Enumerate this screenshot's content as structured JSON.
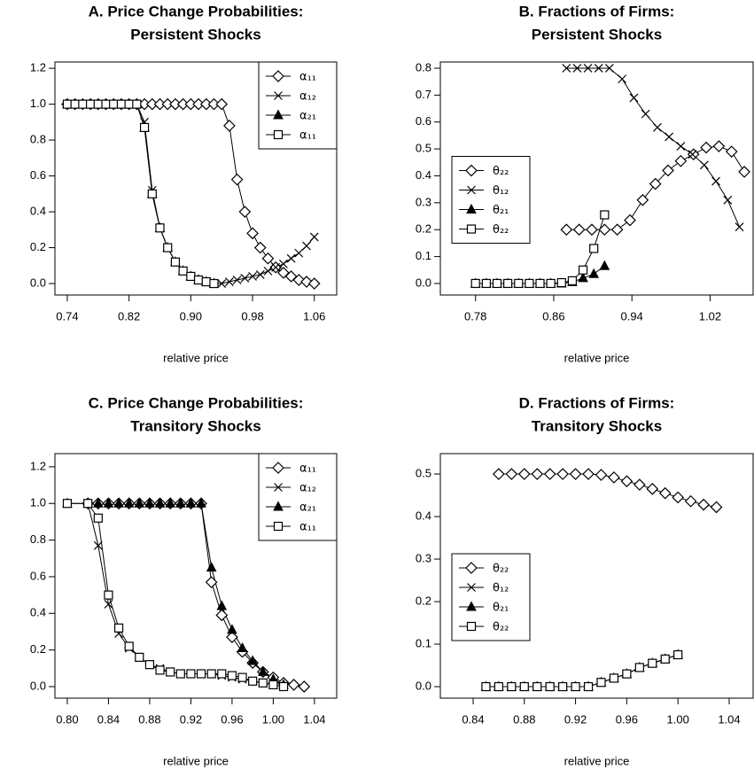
{
  "chart_data": [
    {
      "type": "line",
      "title": [
        "A. Price Change Probabilities:",
        "Persistent Shocks"
      ],
      "xlabel": "relative price",
      "xlim": [
        0.724,
        1.089
      ],
      "ylim": [
        -0.064,
        1.235
      ],
      "xticks": [
        0.74,
        0.82,
        {
          "value": 0.9,
          "label": "0.90"
        },
        0.98,
        1.06
      ],
      "yticks": [
        {
          "value": 0,
          "label": "0.0"
        },
        0.2,
        0.4,
        0.6,
        0.8,
        {
          "value": 1,
          "label": "1.0"
        },
        1.2
      ],
      "legend": "topright",
      "series": [
        {
          "name": "α₁₁",
          "marker": "diamond",
          "color": "#000000",
          "x": [
            0.74,
            0.75,
            0.76,
            0.77,
            0.78,
            0.79,
            0.8,
            0.81,
            0.82,
            0.83,
            0.84,
            0.85,
            0.86,
            0.87,
            0.88,
            0.89,
            0.9,
            0.91,
            0.92,
            0.93,
            0.94,
            0.95,
            0.96,
            0.97,
            0.98,
            0.99,
            1.0,
            1.01,
            1.02,
            1.03,
            1.04,
            1.05,
            1.06
          ],
          "values": [
            1,
            1,
            1,
            1,
            1,
            1,
            1,
            1,
            1,
            1,
            1,
            1,
            1,
            1,
            1,
            1,
            1,
            1,
            1,
            1,
            1,
            0.88,
            0.58,
            0.4,
            0.28,
            0.2,
            0.14,
            0.09,
            0.06,
            0.04,
            0.02,
            0.01,
            0
          ]
        },
        {
          "name": "α₁₂",
          "marker": "cross",
          "color": "#000000",
          "x": [
            0.74,
            0.75,
            0.76,
            0.77,
            0.78,
            0.79,
            0.8,
            0.81,
            0.82,
            0.83,
            0.84,
            0.85,
            0.86,
            0.87,
            0.88,
            0.89,
            0.9,
            0.91,
            0.92,
            0.93,
            0.94,
            0.95,
            0.96,
            0.97,
            0.98,
            0.99,
            1.0,
            1.01,
            1.02,
            1.03,
            1.04,
            1.05,
            1.06
          ],
          "values": [
            1,
            1,
            1,
            1,
            1,
            1,
            1,
            1,
            1,
            1,
            0.9,
            0.52,
            0.31,
            0.2,
            0.12,
            0.07,
            0.04,
            0.02,
            0.01,
            0,
            0,
            0.01,
            0.02,
            0.03,
            0.04,
            0.05,
            0.07,
            0.09,
            0.11,
            0.14,
            0.17,
            0.21,
            0.26
          ]
        },
        {
          "name": "α₂₁",
          "marker": "triangle",
          "color": "#000000",
          "x": [
            0.74,
            0.75,
            0.76,
            0.77,
            0.78,
            0.79,
            0.8,
            0.81,
            0.82,
            0.83,
            0.84,
            0.85,
            0.86,
            0.87,
            0.88,
            0.89,
            0.9,
            0.91,
            0.92,
            0.93
          ],
          "values": [
            1,
            1,
            1,
            1,
            1,
            1,
            1,
            1,
            1,
            1,
            0.87,
            0.5,
            0.31,
            0.2,
            0.12,
            0.07,
            0.04,
            0.02,
            0.01,
            0
          ]
        },
        {
          "name": "α₁₁",
          "marker": "square",
          "color": "#000000",
          "x": [
            0.74,
            0.75,
            0.76,
            0.77,
            0.78,
            0.79,
            0.8,
            0.81,
            0.82,
            0.83,
            0.84,
            0.85,
            0.86,
            0.87,
            0.88,
            0.89,
            0.9,
            0.91,
            0.92,
            0.93
          ],
          "values": [
            1,
            1,
            1,
            1,
            1,
            1,
            1,
            1,
            1,
            1,
            0.87,
            0.5,
            0.31,
            0.2,
            0.12,
            0.07,
            0.04,
            0.02,
            0.01,
            0
          ]
        }
      ]
    },
    {
      "type": "line",
      "title": [
        "B. Fractions of Firms:",
        "Persistent Shocks"
      ],
      "xlabel": "relative price",
      "xlim": [
        0.744,
        1.064
      ],
      "ylim": [
        -0.043,
        0.823
      ],
      "xticks": [
        0.78,
        0.86,
        0.94,
        1.02
      ],
      "yticks": [
        {
          "value": 0,
          "label": "0.0"
        },
        0.1,
        0.2,
        0.3,
        0.4,
        0.5,
        0.6,
        0.7,
        0.8
      ],
      "legend": "left",
      "series": [
        {
          "name": "θ₂₂",
          "marker": "diamond",
          "color": "#000000",
          "x": [
            0.873,
            0.886,
            0.899,
            0.912,
            0.925,
            0.938,
            0.951,
            0.964,
            0.977,
            0.99,
            1.003,
            1.016,
            1.029,
            1.042,
            1.055
          ],
          "values": [
            0.2,
            0.2,
            0.2,
            0.2,
            0.2,
            0.235,
            0.31,
            0.37,
            0.42,
            0.455,
            0.48,
            0.505,
            0.51,
            0.49,
            0.415
          ]
        },
        {
          "name": "θ₁₂",
          "marker": "cross",
          "color": "#000000",
          "x": [
            0.873,
            0.884,
            0.895,
            0.906,
            0.917,
            0.93,
            0.942,
            0.954,
            0.966,
            0.978,
            0.99,
            1.002,
            1.014,
            1.026,
            1.038,
            1.05
          ],
          "values": [
            0.8,
            0.8,
            0.8,
            0.8,
            0.8,
            0.76,
            0.69,
            0.63,
            0.58,
            0.545,
            0.51,
            0.48,
            0.44,
            0.38,
            0.31,
            0.21
          ]
        },
        {
          "name": "θ₂₁",
          "marker": "triangle",
          "color": "#000000",
          "x": [
            0.78,
            0.791,
            0.802,
            0.813,
            0.824,
            0.835,
            0.846,
            0.857,
            0.868,
            0.879,
            0.89,
            0.901,
            0.912
          ],
          "values": [
            0,
            0,
            0,
            0,
            0,
            0,
            0,
            0,
            0,
            0.005,
            0.02,
            0.035,
            0.065
          ]
        },
        {
          "name": "θ₂₂",
          "marker": "square",
          "color": "#000000",
          "x": [
            0.78,
            0.791,
            0.802,
            0.813,
            0.824,
            0.835,
            0.846,
            0.857,
            0.868,
            0.879,
            0.89,
            0.901,
            0.912
          ],
          "values": [
            0,
            0,
            0,
            0,
            0,
            0,
            0,
            0,
            0.003,
            0.01,
            0.05,
            0.13,
            0.255
          ]
        }
      ]
    },
    {
      "type": "line",
      "title": [
        "C. Price Change Probabilities:",
        "Transitory Shocks"
      ],
      "xlabel": "relative price",
      "xlim": [
        0.788,
        1.0616
      ],
      "ylim": [
        -0.063,
        1.272
      ],
      "xticks": [
        {
          "value": 0.8,
          "label": "0.80"
        },
        0.84,
        0.88,
        0.92,
        0.96,
        {
          "value": 1,
          "label": "1.00"
        },
        1.04
      ],
      "yticks": [
        {
          "value": 0,
          "label": "0.0"
        },
        0.2,
        0.4,
        0.6,
        0.8,
        {
          "value": 1,
          "label": "1.0"
        },
        1.2
      ],
      "legend": "topright",
      "series": [
        {
          "name": "α₁₁",
          "marker": "diamond",
          "color": "#000000",
          "x": [
            0.82,
            0.83,
            0.84,
            0.85,
            0.86,
            0.87,
            0.88,
            0.89,
            0.9,
            0.91,
            0.92,
            0.93,
            0.94,
            0.95,
            0.96,
            0.97,
            0.98,
            0.99,
            1.0,
            1.01,
            1.02,
            1.03
          ],
          "values": [
            1,
            1,
            1,
            1,
            1,
            1,
            1,
            1,
            1,
            1,
            1,
            1,
            0.57,
            0.39,
            0.27,
            0.19,
            0.13,
            0.08,
            0.05,
            0.02,
            0.01,
            0
          ]
        },
        {
          "name": "α₁₂",
          "marker": "cross",
          "color": "#000000",
          "x": [
            0.82,
            0.83,
            0.84,
            0.85,
            0.86,
            0.87,
            0.88,
            0.89,
            0.9,
            0.91,
            0.92,
            0.93,
            0.94,
            0.95,
            0.96,
            0.97,
            0.98,
            0.99,
            1.0,
            1.01
          ],
          "values": [
            1,
            0.77,
            0.45,
            0.29,
            0.21,
            0.16,
            0.12,
            0.1,
            0.08,
            0.07,
            0.07,
            0.07,
            0.07,
            0.06,
            0.05,
            0.04,
            0.03,
            0.02,
            0.01,
            0
          ]
        },
        {
          "name": "α₂₁",
          "marker": "triangle",
          "color": "#000000",
          "x": [
            0.8,
            0.82,
            0.83,
            0.84,
            0.85,
            0.86,
            0.87,
            0.88,
            0.89,
            0.9,
            0.91,
            0.92,
            0.93,
            0.94,
            0.95,
            0.96,
            0.97,
            0.98,
            0.99,
            1.0,
            1.01
          ],
          "values": [
            1,
            1,
            1,
            1,
            1,
            1,
            1,
            1,
            1,
            1,
            1,
            1,
            1,
            0.65,
            0.44,
            0.31,
            0.21,
            0.14,
            0.08,
            0.04,
            0.01
          ]
        },
        {
          "name": "α₁₁",
          "marker": "square",
          "color": "#000000",
          "x": [
            0.8,
            0.82,
            0.83,
            0.84,
            0.85,
            0.86,
            0.87,
            0.88,
            0.89,
            0.9,
            0.91,
            0.92,
            0.93,
            0.94,
            0.95,
            0.96,
            0.97,
            0.98,
            0.99,
            1.0,
            1.01
          ],
          "values": [
            1,
            1,
            0.92,
            0.5,
            0.32,
            0.22,
            0.16,
            0.12,
            0.09,
            0.08,
            0.07,
            0.07,
            0.07,
            0.07,
            0.07,
            0.06,
            0.05,
            0.03,
            0.02,
            0.01,
            0
          ]
        }
      ]
    },
    {
      "type": "line",
      "title": [
        "D. Fractions of Firms:",
        "Transitory Shocks"
      ],
      "xlabel": "relative price",
      "xlim": [
        0.8144,
        1.0587
      ],
      "ylim": [
        -0.027,
        0.548
      ],
      "xticks": [
        0.84,
        0.88,
        0.92,
        0.96,
        {
          "value": 1,
          "label": "1.00"
        },
        1.04
      ],
      "yticks": [
        {
          "value": 0,
          "label": "0.0"
        },
        0.1,
        0.2,
        0.3,
        0.4,
        0.5
      ],
      "legend": "left",
      "series": [
        {
          "name": "θ₂₂",
          "marker": "diamond",
          "color": "#000000",
          "x": [
            0.86,
            0.87,
            0.88,
            0.89,
            0.9,
            0.91,
            0.92,
            0.93,
            0.94,
            0.95,
            0.96,
            0.97,
            0.98,
            0.99,
            1.0,
            1.01,
            1.02,
            1.03
          ],
          "values": [
            0.5,
            0.5,
            0.5,
            0.5,
            0.5,
            0.5,
            0.5,
            0.5,
            0.498,
            0.492,
            0.483,
            0.475,
            0.465,
            0.455,
            0.445,
            0.436,
            0.428,
            0.422
          ]
        },
        {
          "name": "θ₁₂",
          "marker": "cross",
          "color": "#000000",
          "x": [
            0.85,
            0.86,
            0.87,
            0.88,
            0.89,
            0.9,
            0.91,
            0.92,
            0.93,
            0.94,
            0.95,
            0.96,
            0.97,
            0.98,
            0.99,
            1.0
          ],
          "values": [
            0,
            0,
            0,
            0,
            0,
            0,
            0,
            0,
            0,
            0.01,
            0.02,
            0.03,
            0.045,
            0.055,
            0.065,
            0.075
          ]
        },
        {
          "name": "θ₂₁",
          "marker": "triangle",
          "color": "#000000",
          "x": [
            0.85,
            0.86,
            0.87,
            0.88,
            0.89,
            0.9,
            0.91,
            0.92,
            0.93,
            0.94,
            0.95,
            0.96,
            0.97,
            0.98,
            0.99,
            1.0
          ],
          "values": [
            0,
            0,
            0,
            0,
            0,
            0,
            0,
            0,
            0,
            0.01,
            0.02,
            0.03,
            0.045,
            0.055,
            0.065,
            0.075
          ]
        },
        {
          "name": "θ₂₂",
          "marker": "square",
          "color": "#000000",
          "x": [
            0.85,
            0.86,
            0.87,
            0.88,
            0.89,
            0.9,
            0.91,
            0.92,
            0.93,
            0.94,
            0.95,
            0.96,
            0.97,
            0.98,
            0.99,
            1.0
          ],
          "values": [
            0,
            0,
            0,
            0,
            0,
            0,
            0,
            0,
            0,
            0.01,
            0.02,
            0.03,
            0.045,
            0.055,
            0.065,
            0.075
          ]
        }
      ]
    }
  ]
}
